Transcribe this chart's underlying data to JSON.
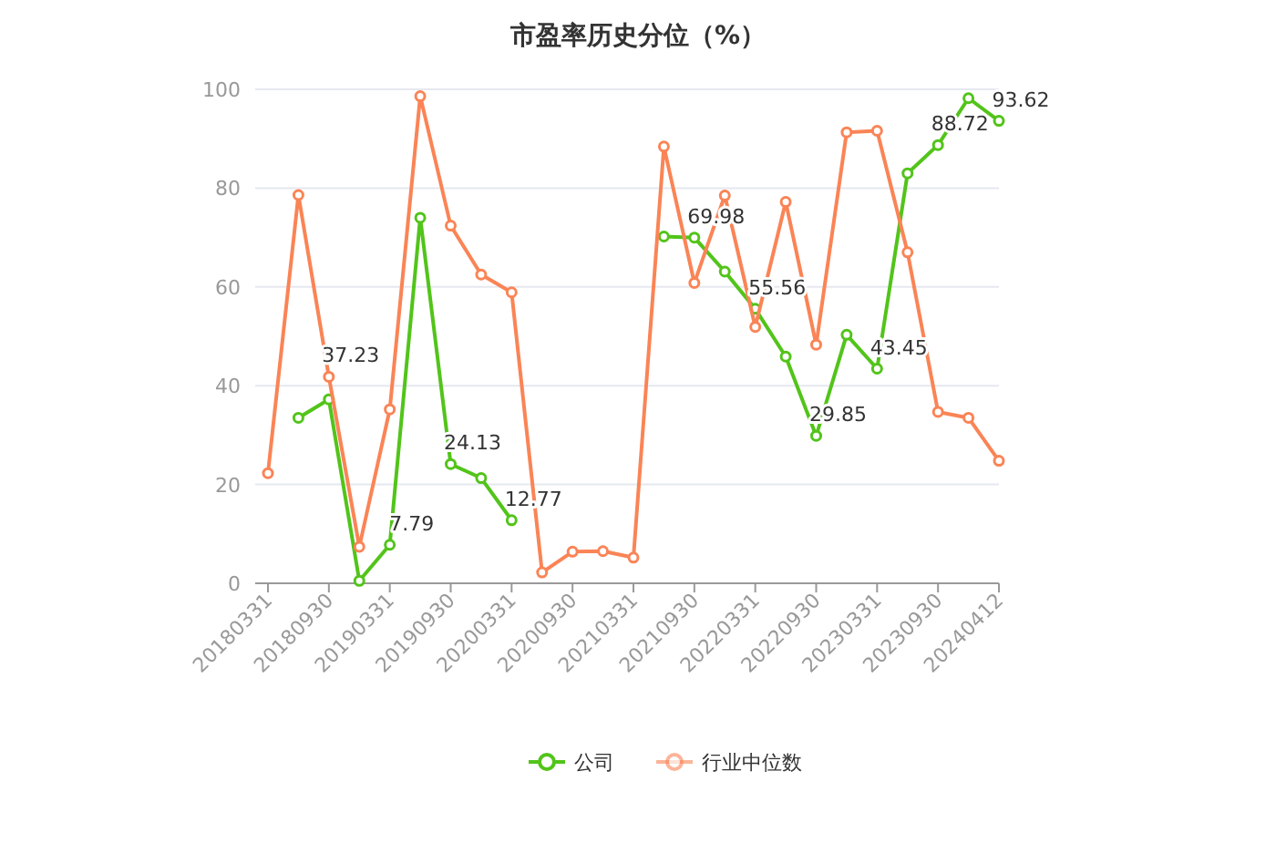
{
  "chart_data": {
    "type": "line",
    "title": "市盈率历史分位（%）",
    "categories": [
      "20180331",
      null,
      "20180930",
      null,
      "20190331",
      null,
      "20190930",
      null,
      "20200331",
      null,
      "20200930",
      null,
      "20210331",
      null,
      "20210930",
      null,
      "20220331",
      null,
      "20220930",
      null,
      "20230331",
      null,
      "20230930",
      null,
      "20240412"
    ],
    "series": [
      {
        "name": "公司",
        "color": "#52c41a",
        "values": [
          null,
          33.5,
          37.23,
          0.5,
          7.79,
          74.0,
          24.13,
          21.3,
          12.77,
          null,
          null,
          null,
          null,
          70.2,
          69.98,
          63.1,
          55.56,
          45.9,
          29.85,
          50.3,
          43.45,
          83.0,
          88.72,
          98.2,
          93.62
        ],
        "value_labels": [
          null,
          null,
          "37.23",
          null,
          "7.79",
          null,
          "24.13",
          null,
          "12.77",
          null,
          null,
          null,
          null,
          null,
          "69.98",
          null,
          "55.56",
          null,
          "29.85",
          null,
          "43.45",
          null,
          "88.72",
          null,
          "93.62"
        ]
      },
      {
        "name": "行业中位数",
        "color": "#fa8456",
        "values": [
          22.3,
          78.6,
          41.8,
          7.4,
          35.2,
          98.6,
          72.4,
          62.5,
          58.9,
          2.2,
          6.4,
          6.5,
          5.2,
          88.4,
          60.8,
          78.5,
          51.9,
          77.2,
          48.3,
          91.3,
          91.6,
          67.0,
          34.7,
          33.5,
          24.8
        ]
      }
    ],
    "ylim": [
      0,
      100
    ],
    "yticks": [
      0,
      20,
      40,
      60,
      80,
      100
    ],
    "grid": "y",
    "legend": "bottom",
    "marker": "circle",
    "line_style": "solid"
  }
}
